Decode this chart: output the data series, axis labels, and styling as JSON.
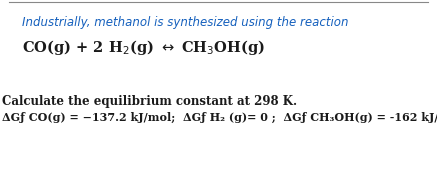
{
  "bg_color": "#ffffff",
  "border_top_color": "#555555",
  "line1_text": "Industrially, methanol is synthesized using the reaction",
  "line1_color": "#1560bd",
  "line1_fontsize": 8.5,
  "line2_fontsize": 10.5,
  "line3_text": "Calculate the equilibrium constant at 298 K.",
  "line3_color": "#1a1a1a",
  "line3_fontsize": 8.5,
  "line4_color": "#1a1a1a",
  "line4_fontsize": 8.0,
  "figsize": [
    4.37,
    1.73
  ],
  "dpi": 100
}
